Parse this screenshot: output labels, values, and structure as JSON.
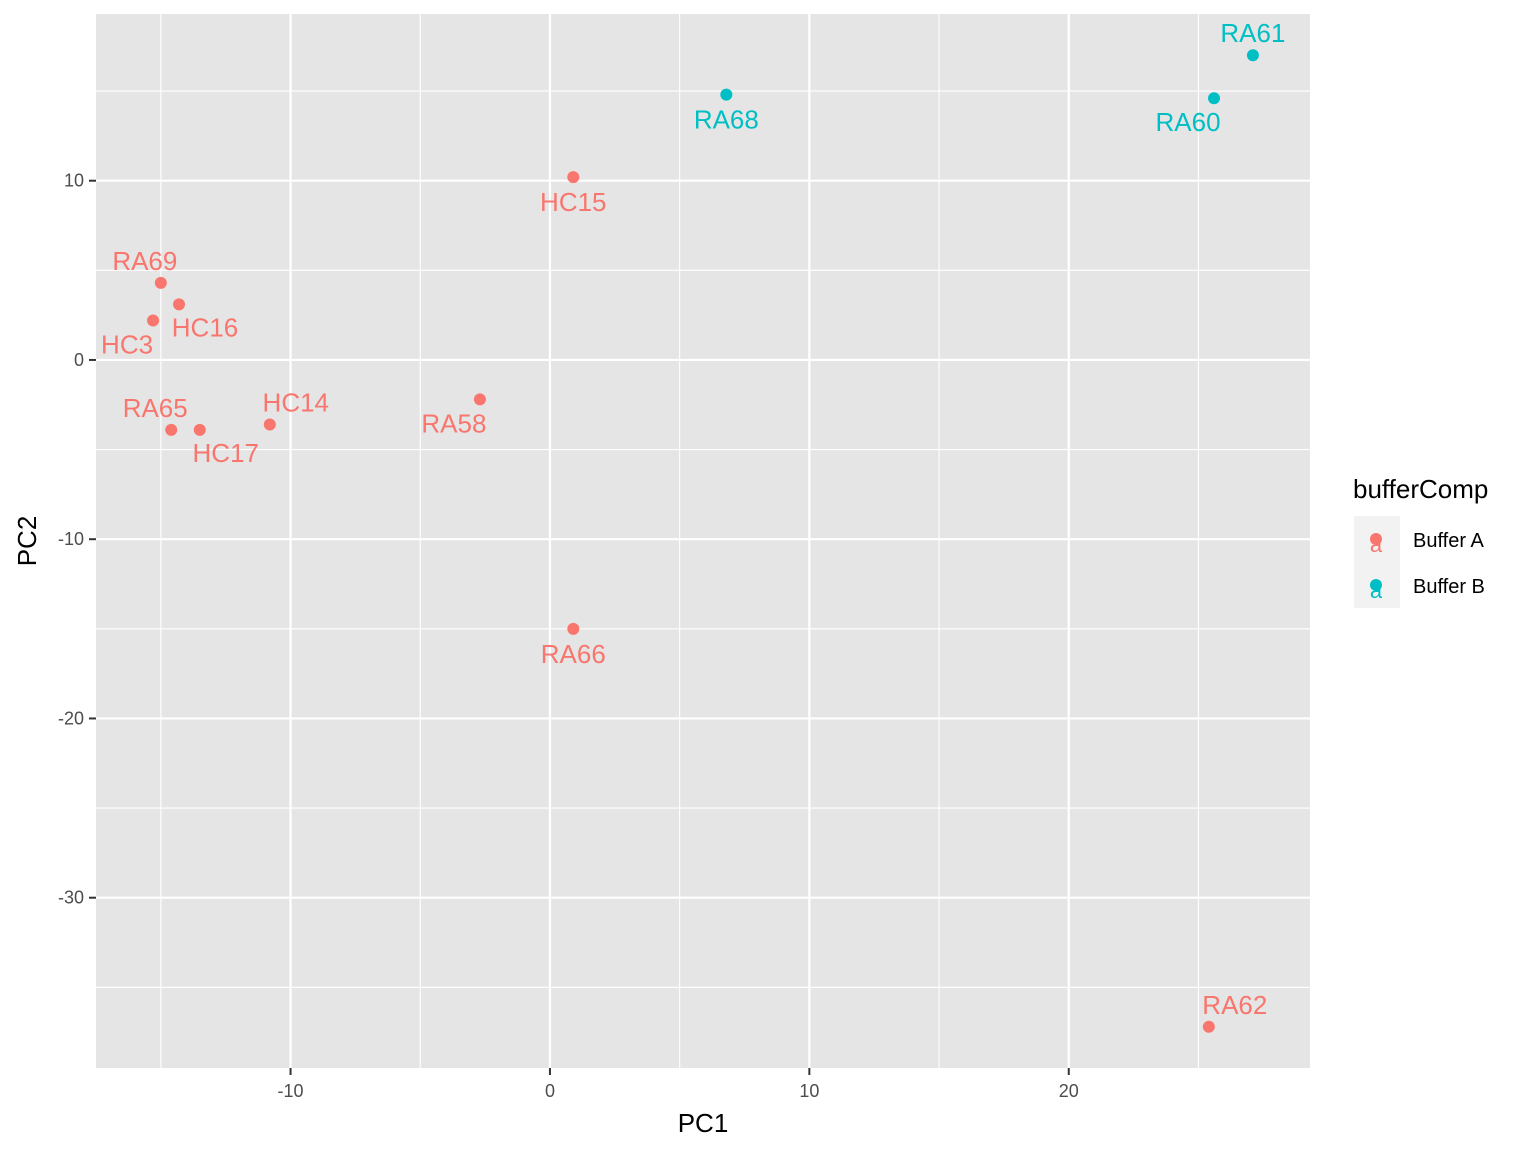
{
  "chart_data": {
    "type": "scatter",
    "title": "",
    "xlabel": "PC1",
    "ylabel": "PC2",
    "xlim": [
      -17.5,
      29.3
    ],
    "ylim": [
      -39.5,
      19.3
    ],
    "x_major_ticks": [
      -10,
      0,
      10,
      20
    ],
    "x_minor_ticks": [
      -15,
      -5,
      5,
      15,
      25
    ],
    "y_major_ticks": [
      -30,
      -20,
      -10,
      0,
      10
    ],
    "y_minor_ticks": [
      -35,
      -25,
      -15,
      -5,
      5,
      15
    ],
    "grid": true,
    "panel_background": "#e5e5e5",
    "grid_color": "#ffffff",
    "legend": {
      "title": "bufferComp",
      "position": "right",
      "key_background": "#f2f2f2",
      "key_glyph": "a",
      "entries": [
        {
          "name": "Buffer A",
          "color": "#F8766D"
        },
        {
          "name": "Buffer B",
          "color": "#00BFC4"
        }
      ]
    },
    "series": [
      {
        "name": "Buffer A",
        "color": "#F8766D",
        "points": [
          {
            "label": "HC15",
            "x": 0.9,
            "y": 10.2,
            "label_pos": "below"
          },
          {
            "label": "RA69",
            "x": -15.0,
            "y": 4.3,
            "label_pos": "above-left"
          },
          {
            "label": "HC16",
            "x": -14.3,
            "y": 3.1,
            "label_pos": "below-right"
          },
          {
            "label": "HC3",
            "x": -15.3,
            "y": 2.2,
            "label_pos": "below-left"
          },
          {
            "label": "RA65",
            "x": -14.6,
            "y": -3.9,
            "label_pos": "above-left"
          },
          {
            "label": "HC17",
            "x": -13.5,
            "y": -3.9,
            "label_pos": "below-right"
          },
          {
            "label": "HC14",
            "x": -10.8,
            "y": -3.6,
            "label_pos": "above-right"
          },
          {
            "label": "RA58",
            "x": -2.7,
            "y": -2.2,
            "label_pos": "below-left"
          },
          {
            "label": "RA66",
            "x": 0.9,
            "y": -15.0,
            "label_pos": "below"
          },
          {
            "label": "RA62",
            "x": 25.4,
            "y": -37.2,
            "label_pos": "above-right"
          }
        ]
      },
      {
        "name": "Buffer B",
        "color": "#00BFC4",
        "points": [
          {
            "label": "RA68",
            "x": 6.8,
            "y": 14.8,
            "label_pos": "below"
          },
          {
            "label": "RA61",
            "x": 27.1,
            "y": 17.0,
            "label_pos": "above"
          },
          {
            "label": "RA60",
            "x": 25.6,
            "y": 14.6,
            "label_pos": "below-left"
          }
        ]
      }
    ]
  }
}
